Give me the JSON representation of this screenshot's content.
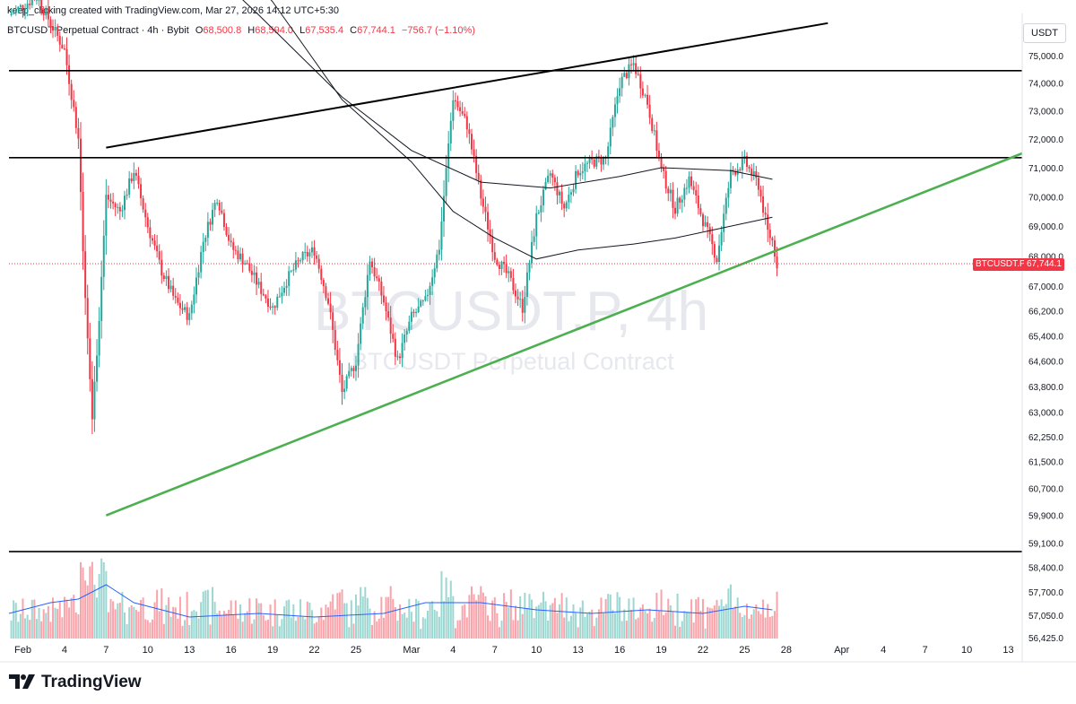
{
  "header": {
    "credit": "keep_clicking created with TradingView.com, Mar 27, 2026 14:12 UTC+5:30"
  },
  "symbol": {
    "title": "BTCUSDT Perpetual Contract · 4h · Bybit",
    "o_label": "O",
    "o": "68,500.8",
    "h_label": "H",
    "h": "68,594.0",
    "l_label": "L",
    "l": "67,535.4",
    "c_label": "C",
    "c": "67,744.1",
    "change": "−756.7 (−1.10%)"
  },
  "currency": "USDT",
  "last_price": {
    "label": "BTCUSDT.P",
    "value": "67,744.1",
    "price": 67744.1
  },
  "watermark": {
    "line1": "BTCUSDT.P, 4h",
    "line2": "BTCUSDT Perpetual Contract"
  },
  "footer": {
    "brand": "TradingView"
  },
  "colors": {
    "up": "#26a69a",
    "down": "#f23645",
    "trend_support": "#4caf50",
    "level": "#000000",
    "ma_volume": "#2962ff"
  },
  "chart_data": {
    "type": "candlestick",
    "y_axis_ticks": [
      "75,000.0",
      "74,000.0",
      "73,000.0",
      "72,000.0",
      "71,000.0",
      "70,000.0",
      "69,000.0",
      "68,000.0",
      "67,000.0",
      "66,200.0",
      "65,400.0",
      "64,600.0",
      "63,800.0",
      "63,000.0",
      "62,250.0",
      "61,500.0",
      "60,700.0",
      "59,900.0",
      "59,100.0",
      "58,400.0",
      "57,700.0",
      "57,050.0",
      "56,425.0"
    ],
    "y_axis_scale": "log",
    "x_axis_ticks": [
      "Feb",
      "4",
      "7",
      "10",
      "13",
      "16",
      "19",
      "22",
      "25",
      "Mar",
      "4",
      "7",
      "10",
      "13",
      "16",
      "19",
      "22",
      "25",
      "28",
      "Apr",
      "4",
      "7",
      "10",
      "13"
    ],
    "x_range": [
      "2026-01-31",
      "2026-04-14"
    ],
    "horizontal_levels": [
      74450,
      71350,
      58850
    ],
    "trendlines": [
      {
        "name": "",
        "color": "#000000",
        "from": [
          "2026-02-07",
          71700
        ],
        "to": [
          "2026-03-31",
          76200
        ]
      },
      {
        "name": "",
        "color": "#4caf50",
        "from": [
          "2026-02-07",
          59900
        ],
        "to": [
          "2026-04-14",
          71500
        ]
      }
    ],
    "close_path": [
      [
        "2026-01-31",
        76500
      ],
      [
        "2026-02-02",
        77200
      ],
      [
        "2026-02-04",
        75200
      ],
      [
        "2026-02-05",
        72000
      ],
      [
        "2026-02-05T12:00",
        66500
      ],
      [
        "2026-02-06",
        62800
      ],
      [
        "2026-02-06T12:00",
        66000
      ],
      [
        "2026-02-07",
        70000
      ],
      [
        "2026-02-08",
        69500
      ],
      [
        "2026-02-09",
        70900
      ],
      [
        "2026-02-10",
        69000
      ],
      [
        "2026-02-11",
        67500
      ],
      [
        "2026-02-12",
        66500
      ],
      [
        "2026-02-13",
        66000
      ],
      [
        "2026-02-14",
        68500
      ],
      [
        "2026-02-15",
        70000
      ],
      [
        "2026-02-16",
        68300
      ],
      [
        "2026-02-17",
        67800
      ],
      [
        "2026-02-18",
        67000
      ],
      [
        "2026-02-19",
        66300
      ],
      [
        "2026-02-20",
        67200
      ],
      [
        "2026-02-21",
        67900
      ],
      [
        "2026-02-22",
        68200
      ],
      [
        "2026-02-23",
        66500
      ],
      [
        "2026-02-24",
        63600
      ],
      [
        "2026-02-25",
        64600
      ],
      [
        "2026-02-26",
        67900
      ],
      [
        "2026-02-27",
        66500
      ],
      [
        "2026-02-28",
        64600
      ],
      [
        "2026-03-01",
        66000
      ],
      [
        "2026-03-02",
        66500
      ],
      [
        "2026-03-03",
        68300
      ],
      [
        "2026-03-04",
        73500
      ],
      [
        "2026-03-05",
        72500
      ],
      [
        "2026-03-06",
        70000
      ],
      [
        "2026-03-07",
        68000
      ],
      [
        "2026-03-08",
        67300
      ],
      [
        "2026-03-09",
        66300
      ],
      [
        "2026-03-10",
        69300
      ],
      [
        "2026-03-11",
        70800
      ],
      [
        "2026-03-12",
        69600
      ],
      [
        "2026-03-13",
        70900
      ],
      [
        "2026-03-14",
        71200
      ],
      [
        "2026-03-15",
        71300
      ],
      [
        "2026-03-16",
        74000
      ],
      [
        "2026-03-17",
        74700
      ],
      [
        "2026-03-18",
        73300
      ],
      [
        "2026-03-19",
        70900
      ],
      [
        "2026-03-20",
        69600
      ],
      [
        "2026-03-21",
        70600
      ],
      [
        "2026-03-22",
        69200
      ],
      [
        "2026-03-23",
        67900
      ],
      [
        "2026-03-24",
        70800
      ],
      [
        "2026-03-25",
        71200
      ],
      [
        "2026-03-26",
        70400
      ],
      [
        "2026-03-26T16:00",
        68800
      ],
      [
        "2026-03-27",
        68500
      ],
      [
        "2026-03-27T08:00",
        67744.1
      ]
    ],
    "moving_averages": [
      {
        "name": "",
        "color": "#131722",
        "points": [
          [
            "2026-02-13",
            79000
          ],
          [
            "2026-02-18",
            76500
          ],
          [
            "2026-02-24",
            73500
          ],
          [
            "2026-03-01",
            71600
          ],
          [
            "2026-03-06",
            70500
          ],
          [
            "2026-03-11",
            70300
          ],
          [
            "2026-03-16",
            70700
          ],
          [
            "2026-03-19",
            71000
          ],
          [
            "2026-03-24",
            70900
          ],
          [
            "2026-03-27",
            70600
          ]
        ]
      },
      {
        "name": "",
        "color": "#131722",
        "points": [
          [
            "2026-02-14",
            80000
          ],
          [
            "2026-02-19",
            77000
          ],
          [
            "2026-02-24",
            73400
          ],
          [
            "2026-03-01",
            71200
          ],
          [
            "2026-03-04",
            69500
          ],
          [
            "2026-03-07",
            68600
          ],
          [
            "2026-03-10",
            67900
          ],
          [
            "2026-03-13",
            68200
          ],
          [
            "2026-03-17",
            68400
          ],
          [
            "2026-03-20",
            68600
          ],
          [
            "2026-03-23",
            68900
          ],
          [
            "2026-03-25",
            69100
          ],
          [
            "2026-03-27",
            69300
          ]
        ]
      }
    ],
    "volume_ma": [
      [
        "2026-01-31",
        0.35
      ],
      [
        "2026-02-03",
        0.5
      ],
      [
        "2026-02-05",
        0.55
      ],
      [
        "2026-02-07",
        0.75
      ],
      [
        "2026-02-09",
        0.5
      ],
      [
        "2026-02-13",
        0.3
      ],
      [
        "2026-02-18",
        0.35
      ],
      [
        "2026-02-22",
        0.3
      ],
      [
        "2026-02-27",
        0.35
      ],
      [
        "2026-03-02",
        0.5
      ],
      [
        "2026-03-06",
        0.5
      ],
      [
        "2026-03-10",
        0.4
      ],
      [
        "2026-03-14",
        0.35
      ],
      [
        "2026-03-18",
        0.4
      ],
      [
        "2026-03-22",
        0.35
      ],
      [
        "2026-03-25",
        0.45
      ],
      [
        "2026-03-27",
        0.4
      ]
    ]
  }
}
